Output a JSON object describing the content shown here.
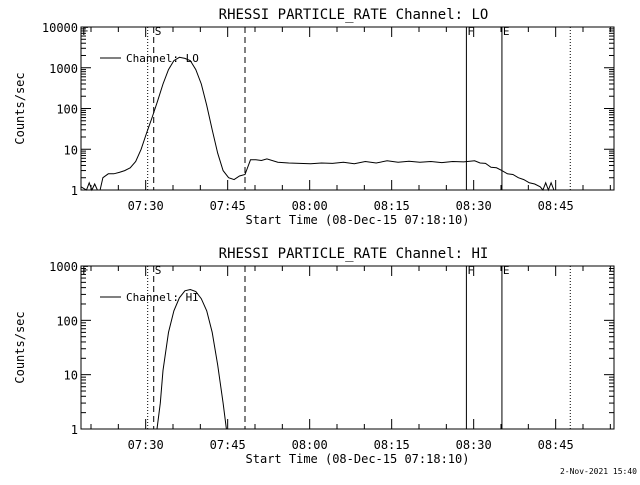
{
  "footer": {
    "timestamp": "2-Nov-2021 15:40"
  },
  "chart_data": [
    {
      "type": "line",
      "title": "RHESSI PARTICLE_RATE Channel: LO",
      "xlabel": "Start Time (08-Dec-15 07:18:10)",
      "ylabel": "Counts/sec",
      "x_unit": "minutes since 07:18:10",
      "xlim": [
        0,
        97.5
      ],
      "ylim": [
        1,
        10000
      ],
      "yscale": "log",
      "grid": false,
      "legend": "top-left",
      "x_ticks": [
        {
          "value": 11.83,
          "label": "07:30"
        },
        {
          "value": 26.83,
          "label": "07:45"
        },
        {
          "value": 41.83,
          "label": "08:00"
        },
        {
          "value": 56.83,
          "label": "08:15"
        },
        {
          "value": 71.83,
          "label": "08:30"
        },
        {
          "value": 86.83,
          "label": "08:45"
        }
      ],
      "y_ticks": [
        {
          "value": 1,
          "label": "1"
        },
        {
          "value": 10,
          "label": "10"
        },
        {
          "value": 100,
          "label": "100"
        },
        {
          "value": 1000,
          "label": "1000"
        },
        {
          "value": 10000,
          "label": "10000"
        }
      ],
      "vlines": [
        {
          "x": 12.2,
          "style": "dotted",
          "label": ""
        },
        {
          "x": 13.3,
          "style": "dashed",
          "label": "S"
        },
        {
          "x": 30.0,
          "style": "dashed",
          "label": ""
        },
        {
          "x": 70.5,
          "style": "solid",
          "label": "F"
        },
        {
          "x": 77.0,
          "style": "solid",
          "label": "E"
        },
        {
          "x": 89.5,
          "style": "dotted",
          "label": ""
        }
      ],
      "corner_label": "F",
      "series": [
        {
          "name": "Channel: LO",
          "x": [
            0,
            1,
            1.5,
            2,
            2.5,
            3,
            3.5,
            4,
            5,
            6,
            7,
            8,
            9,
            10,
            11,
            12,
            13,
            14,
            15,
            16,
            17,
            18,
            19,
            20,
            21,
            22,
            23,
            24,
            25,
            26,
            27,
            28,
            29,
            30,
            31,
            32,
            33,
            34,
            36,
            38,
            40,
            42,
            44,
            46,
            48,
            50,
            52,
            54,
            56,
            58,
            60,
            62,
            64,
            66,
            68,
            70,
            72,
            73,
            74,
            75,
            76,
            77,
            78,
            79,
            80,
            81,
            82,
            83,
            84,
            84.5,
            85,
            85.5,
            86,
            86.5,
            87
          ],
          "y": [
            1.2,
            1.0,
            1.5,
            1.0,
            1.4,
            1.0,
            1.0,
            2.0,
            2.5,
            2.5,
            2.7,
            3.0,
            3.5,
            5.0,
            10,
            25,
            60,
            150,
            400,
            900,
            1500,
            1800,
            1700,
            1500,
            900,
            400,
            120,
            30,
            8,
            3,
            2,
            1.8,
            2.2,
            2.4,
            5.5,
            5.5,
            5.3,
            5.8,
            4.8,
            4.6,
            4.5,
            4.4,
            4.6,
            4.5,
            4.8,
            4.4,
            5.0,
            4.6,
            5.2,
            4.8,
            5.1,
            4.8,
            5.0,
            4.7,
            5.0,
            4.9,
            5.2,
            4.6,
            4.5,
            3.6,
            3.5,
            3.0,
            2.5,
            2.4,
            2.0,
            1.8,
            1.5,
            1.4,
            1.2,
            1.0,
            1.5,
            1.0,
            1.5,
            1.0,
            1.0
          ]
        }
      ]
    },
    {
      "type": "line",
      "title": "RHESSI PARTICLE_RATE Channel: HI",
      "xlabel": "Start Time (08-Dec-15 07:18:10)",
      "ylabel": "Counts/sec",
      "x_unit": "minutes since 07:18:10",
      "xlim": [
        0,
        97.5
      ],
      "ylim": [
        1,
        1000
      ],
      "yscale": "log",
      "grid": false,
      "legend": "top-left",
      "x_ticks": [
        {
          "value": 11.83,
          "label": "07:30"
        },
        {
          "value": 26.83,
          "label": "07:45"
        },
        {
          "value": 41.83,
          "label": "08:00"
        },
        {
          "value": 56.83,
          "label": "08:15"
        },
        {
          "value": 71.83,
          "label": "08:30"
        },
        {
          "value": 86.83,
          "label": "08:45"
        }
      ],
      "y_ticks": [
        {
          "value": 1,
          "label": "1"
        },
        {
          "value": 10,
          "label": "10"
        },
        {
          "value": 100,
          "label": "100"
        },
        {
          "value": 1000,
          "label": "1000"
        }
      ],
      "vlines": [
        {
          "x": 12.2,
          "style": "dotted",
          "label": ""
        },
        {
          "x": 13.3,
          "style": "dashed",
          "label": "S"
        },
        {
          "x": 30.0,
          "style": "dashed",
          "label": ""
        },
        {
          "x": 70.5,
          "style": "solid",
          "label": "F"
        },
        {
          "x": 77.0,
          "style": "solid",
          "label": "E"
        },
        {
          "x": 89.5,
          "style": "dotted",
          "label": ""
        }
      ],
      "corner_label": "F",
      "series": [
        {
          "name": "Channel: HI",
          "x": [
            13.9,
            14.5,
            15,
            16,
            17,
            18,
            19,
            20,
            21,
            22,
            23,
            24,
            25,
            26,
            26.6
          ],
          "y": [
            1.0,
            3,
            12,
            60,
            150,
            260,
            350,
            370,
            340,
            250,
            150,
            60,
            15,
            3,
            1.0
          ]
        }
      ]
    }
  ]
}
